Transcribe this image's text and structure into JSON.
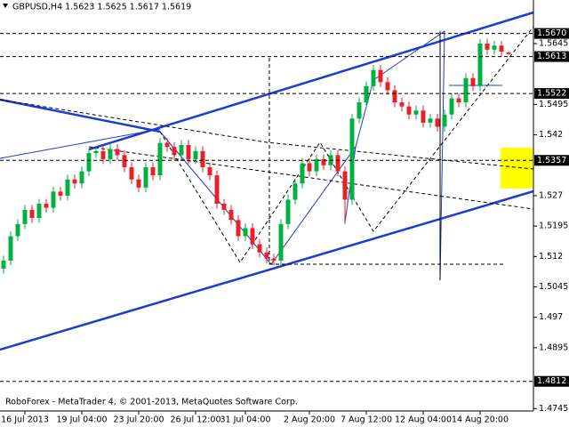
{
  "chart_data": {
    "type": "candlestick",
    "title": "GBPUSD,H4  1.5623 1.5625 1.5617 1.5619",
    "footer": "RoboForex - MetaTrader 4, © 2001-2013, MetaQuotes Software Corp.",
    "categories": [
      null,
      null,
      null,
      "16 Jul 2013",
      null,
      null,
      null,
      null,
      null,
      null,
      null,
      "19 Jul 04:00",
      null,
      null,
      null,
      null,
      null,
      null,
      null,
      "23 Jul 20:00",
      null,
      null,
      null,
      null,
      null,
      null,
      null,
      "26 Jul 12:00",
      null,
      null,
      null,
      null,
      null,
      null,
      "31 Jul 04:00",
      null,
      null,
      null,
      null,
      null,
      null,
      null,
      null,
      "2 Aug 20:00",
      null,
      null,
      null,
      null,
      null,
      null,
      null,
      "7 Aug 12:00",
      null,
      null,
      null,
      null,
      null,
      null,
      null,
      "12 Aug 04:00",
      null,
      null,
      null,
      null,
      null,
      null,
      null,
      "14 Aug 20:00",
      null,
      null,
      null,
      null
    ],
    "open": [
      1.509,
      1.511,
      1.517,
      1.52,
      1.5235,
      1.5215,
      1.525,
      1.524,
      1.528,
      1.527,
      1.531,
      1.53,
      1.533,
      1.5375,
      1.538,
      1.536,
      1.5385,
      1.537,
      1.534,
      1.531,
      1.529,
      1.534,
      1.532,
      1.54,
      1.539,
      1.537,
      1.5395,
      1.536,
      1.538,
      1.534,
      1.532,
      1.525,
      1.5235,
      1.521,
      1.517,
      1.519,
      1.515,
      1.513,
      1.5115,
      1.511,
      1.52,
      1.526,
      1.53,
      1.535,
      1.533,
      1.536,
      1.5345,
      1.537,
      1.533,
      1.526,
      1.546,
      1.55,
      1.554,
      1.558,
      1.555,
      1.553,
      1.55,
      1.549,
      1.547,
      1.548,
      1.545,
      1.546,
      1.544,
      1.547,
      1.551,
      1.55,
      1.556,
      1.554,
      1.5645,
      1.563,
      1.564,
      1.5623
    ],
    "high": [
      1.5122,
      1.5182,
      1.5212,
      1.5247,
      1.5247,
      1.5262,
      1.5262,
      1.5292,
      1.5292,
      1.5322,
      1.5322,
      1.5342,
      1.5387,
      1.5392,
      1.5392,
      1.5397,
      1.5397,
      1.5382,
      1.5352,
      1.5322,
      1.5352,
      1.5352,
      1.5412,
      1.5412,
      1.5402,
      1.5407,
      1.5407,
      1.5392,
      1.5392,
      1.5352,
      1.5332,
      1.5262,
      1.5247,
      1.5222,
      1.5202,
      1.5202,
      1.5162,
      1.5142,
      1.5127,
      1.5212,
      1.5272,
      1.5312,
      1.5362,
      1.5362,
      1.5372,
      1.5372,
      1.5382,
      1.5382,
      1.5342,
      1.5472,
      1.5512,
      1.5552,
      1.5592,
      1.5592,
      1.5562,
      1.5542,
      1.5512,
      1.5502,
      1.5492,
      1.5492,
      1.5472,
      1.5472,
      1.5482,
      1.5522,
      1.5522,
      1.5572,
      1.5572,
      1.5657,
      1.5657,
      1.5652,
      1.5652,
      1.5625
    ],
    "low": [
      1.5078,
      1.5098,
      1.5158,
      1.5188,
      1.5203,
      1.5203,
      1.5228,
      1.5228,
      1.5258,
      1.5258,
      1.5288,
      1.5288,
      1.5318,
      1.5363,
      1.5348,
      1.5348,
      1.5358,
      1.5328,
      1.5298,
      1.5278,
      1.5278,
      1.5308,
      1.5308,
      1.5378,
      1.5358,
      1.5358,
      1.5348,
      1.5348,
      1.5328,
      1.5308,
      1.5238,
      1.5223,
      1.5198,
      1.5158,
      1.5158,
      1.5138,
      1.5118,
      1.5103,
      1.5098,
      1.5098,
      1.5188,
      1.5248,
      1.5288,
      1.5318,
      1.5318,
      1.5333,
      1.5333,
      1.5318,
      1.52,
      1.5248,
      1.5448,
      1.5488,
      1.5528,
      1.5538,
      1.5518,
      1.5488,
      1.5478,
      1.5458,
      1.5458,
      1.5438,
      1.5438,
      1.5428,
      1.5428,
      1.5458,
      1.5488,
      1.5488,
      1.5528,
      1.5528,
      1.5618,
      1.5618,
      1.5613,
      1.5617
    ],
    "close": [
      1.511,
      1.517,
      1.52,
      1.5235,
      1.5215,
      1.525,
      1.524,
      1.528,
      1.527,
      1.531,
      1.53,
      1.533,
      1.5375,
      1.538,
      1.536,
      1.5385,
      1.537,
      1.534,
      1.531,
      1.529,
      1.534,
      1.532,
      1.54,
      1.539,
      1.537,
      1.5395,
      1.536,
      1.538,
      1.534,
      1.532,
      1.525,
      1.5235,
      1.521,
      1.517,
      1.519,
      1.515,
      1.513,
      1.5115,
      1.511,
      1.52,
      1.526,
      1.53,
      1.535,
      1.533,
      1.536,
      1.5345,
      1.537,
      1.533,
      1.526,
      1.546,
      1.55,
      1.554,
      1.558,
      1.555,
      1.553,
      1.55,
      1.549,
      1.547,
      1.548,
      1.545,
      1.546,
      1.544,
      1.547,
      1.551,
      1.55,
      1.556,
      1.554,
      1.5645,
      1.563,
      1.564,
      1.5625,
      1.5619
    ],
    "up_color": "#00b140",
    "down_color": "#e8202a",
    "ylim": [
      1.4739,
      1.57525
    ],
    "yticks": [
      1.5645,
      1.5495,
      1.542,
      1.527,
      1.5195,
      1.512,
      1.5045,
      1.497,
      1.4895,
      1.4745
    ],
    "levels": [
      1.567,
      1.5613,
      1.5522,
      1.5357,
      1.4812
    ],
    "level_labels": [
      "1.5670",
      "1.5613",
      "1.5522",
      "1.5357",
      "1.4812"
    ],
    "grid": false
  }
}
